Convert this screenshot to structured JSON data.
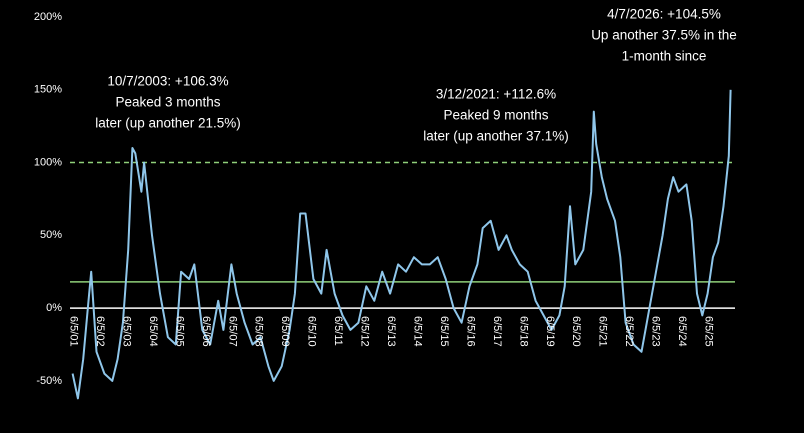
{
  "chart_data": {
    "type": "line",
    "annotations": [
      [
        "10/7/2003: +106.3%",
        "Peaked 3 months",
        "later (up another 21.5%)"
      ],
      [
        "3/12/2021: +112.6%",
        "Peaked 9 months",
        "later (up another 37.1%)"
      ],
      [
        "4/7/2026: +104.5%",
        "Up another 37.5% in the",
        "1-month since"
      ]
    ],
    "ylim": [
      -70,
      200
    ],
    "yticks": [
      {
        "value": -50,
        "label": "-50%"
      },
      {
        "value": 0,
        "label": "0%"
      },
      {
        "value": 50,
        "label": "50%"
      },
      {
        "value": 100,
        "label": "100%"
      },
      {
        "value": 150,
        "label": "150%"
      },
      {
        "value": 200,
        "label": "200%"
      }
    ],
    "xlim": [
      2001.3,
      2026.7
    ],
    "xticks": [
      {
        "value": 2001.43,
        "label": "6/5/01"
      },
      {
        "value": 2002.43,
        "label": "6/5/02"
      },
      {
        "value": 2003.43,
        "label": "6/5/03"
      },
      {
        "value": 2004.43,
        "label": "6/5/04"
      },
      {
        "value": 2005.43,
        "label": "6/5/05"
      },
      {
        "value": 2006.43,
        "label": "6/5/06"
      },
      {
        "value": 2007.43,
        "label": "6/5/07"
      },
      {
        "value": 2008.43,
        "label": "6/5/08"
      },
      {
        "value": 2009.43,
        "label": "6/5/09"
      },
      {
        "value": 2010.43,
        "label": "6/5/10"
      },
      {
        "value": 2011.43,
        "label": "6/5/11"
      },
      {
        "value": 2012.43,
        "label": "6/5/12"
      },
      {
        "value": 2013.43,
        "label": "6/5/13"
      },
      {
        "value": 2014.43,
        "label": "6/5/14"
      },
      {
        "value": 2015.43,
        "label": "6/5/15"
      },
      {
        "value": 2016.43,
        "label": "6/5/16"
      },
      {
        "value": 2017.43,
        "label": "6/5/17"
      },
      {
        "value": 2018.43,
        "label": "6/5/18"
      },
      {
        "value": 2019.43,
        "label": "6/5/19"
      },
      {
        "value": 2020.43,
        "label": "6/5/20"
      },
      {
        "value": 2021.43,
        "label": "6/5/21"
      },
      {
        "value": 2022.43,
        "label": "6/5/22"
      },
      {
        "value": 2023.43,
        "label": "6/5/23"
      },
      {
        "value": 2024.43,
        "label": "6/5/24"
      },
      {
        "value": 2025.43,
        "label": "6/5/25"
      }
    ],
    "hlines": [
      {
        "value": 100,
        "color": "#8fd07a",
        "style": "dashed"
      },
      {
        "value": 18,
        "color": "#8fd07a",
        "style": "solid"
      },
      {
        "value": 0,
        "color": "#ffffff",
        "style": "solid"
      }
    ],
    "series": [
      {
        "color": "#8fc6ea",
        "x": [
          2001.4,
          2001.6,
          2001.8,
          2002.0,
          2002.1,
          2002.3,
          2002.6,
          2002.9,
          2003.1,
          2003.3,
          2003.5,
          2003.66,
          2003.77,
          2004.0,
          2004.1,
          2004.4,
          2004.7,
          2005.0,
          2005.3,
          2005.5,
          2005.8,
          2006.0,
          2006.3,
          2006.6,
          2006.9,
          2007.1,
          2007.4,
          2007.6,
          2007.9,
          2008.2,
          2008.5,
          2008.8,
          2009.0,
          2009.3,
          2009.6,
          2009.8,
          2010.0,
          2010.2,
          2010.5,
          2010.8,
          2011.0,
          2011.3,
          2011.6,
          2011.9,
          2012.2,
          2012.5,
          2012.8,
          2013.1,
          2013.4,
          2013.7,
          2014.0,
          2014.3,
          2014.6,
          2014.9,
          2015.2,
          2015.5,
          2015.8,
          2016.1,
          2016.4,
          2016.7,
          2016.9,
          2017.2,
          2017.5,
          2017.8,
          2018.0,
          2018.3,
          2018.6,
          2018.9,
          2019.2,
          2019.5,
          2019.8,
          2020.0,
          2020.2,
          2020.4,
          2020.7,
          2021.0,
          2021.1,
          2021.19,
          2021.4,
          2021.6,
          2021.9,
          2022.1,
          2022.3,
          2022.6,
          2022.9,
          2023.1,
          2023.4,
          2023.7,
          2023.9,
          2024.1,
          2024.3,
          2024.6,
          2024.8,
          2025.0,
          2025.2,
          2025.4,
          2025.6,
          2025.8,
          2026.0,
          2026.2,
          2026.27
        ],
        "values": [
          -45,
          -62,
          -35,
          5,
          25,
          -30,
          -45,
          -50,
          -35,
          -10,
          40,
          110,
          106.3,
          80,
          100,
          50,
          10,
          -20,
          -25,
          25,
          20,
          30,
          -15,
          -25,
          5,
          -15,
          30,
          10,
          -10,
          -25,
          -20,
          -40,
          -50,
          -40,
          -15,
          10,
          65,
          65,
          20,
          10,
          40,
          10,
          -5,
          -15,
          -10,
          15,
          5,
          25,
          10,
          30,
          25,
          35,
          30,
          30,
          35,
          20,
          0,
          -10,
          15,
          30,
          55,
          60,
          40,
          50,
          40,
          30,
          25,
          5,
          -5,
          -15,
          -5,
          15,
          70,
          30,
          40,
          80,
          135,
          112.6,
          90,
          75,
          60,
          35,
          -10,
          -25,
          -30,
          -10,
          20,
          50,
          75,
          90,
          80,
          85,
          60,
          10,
          -5,
          10,
          35,
          45,
          70,
          104.5,
          150
        ]
      }
    ]
  }
}
